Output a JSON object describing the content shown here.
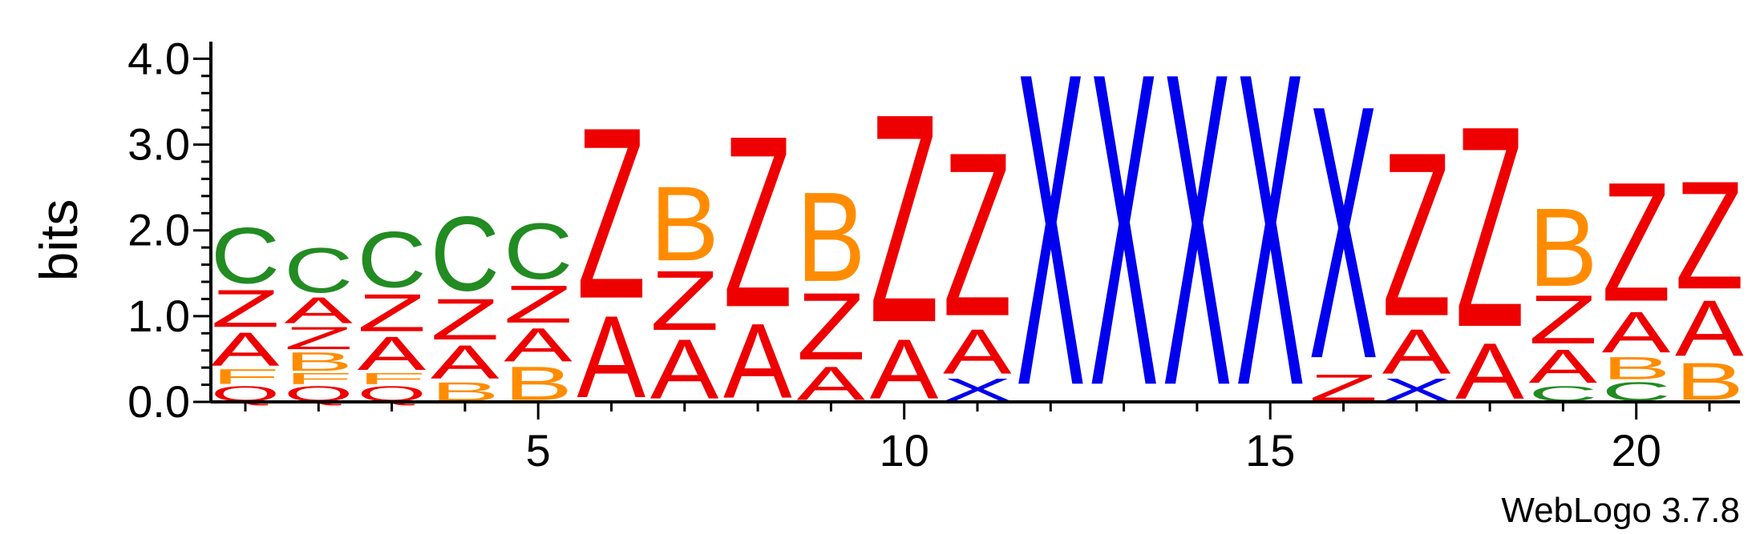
{
  "chart_data": {
    "type": "sequence-logo",
    "ylabel": "bits",
    "ylim": [
      0,
      4.2
    ],
    "y_ticks": [
      "0.0",
      "1.0",
      "2.0",
      "3.0",
      "4.0"
    ],
    "y_tick_values": [
      0,
      1,
      2,
      3,
      4
    ],
    "x_ticks": [
      "5",
      "10",
      "15",
      "20"
    ],
    "x_tick_values": [
      5,
      10,
      15,
      20
    ],
    "positions": [
      1,
      21
    ],
    "colors": {
      "A": "#ee0000",
      "Z": "#ee0000",
      "Q": "#ee0000",
      "B": "#ff8c00",
      "F": "#ff8c00",
      "C": "#228b22",
      "X": "#0000ee"
    },
    "columns": [
      {
        "pos": 1,
        "stack": [
          {
            "letter": "Q",
            "bits": 0.2
          },
          {
            "letter": "F",
            "bits": 0.2
          },
          {
            "letter": "A",
            "bits": 0.45
          },
          {
            "letter": "Z",
            "bits": 0.5
          },
          {
            "letter": "C",
            "bits": 0.75
          }
        ]
      },
      {
        "pos": 2,
        "stack": [
          {
            "letter": "Q",
            "bits": 0.2
          },
          {
            "letter": "F",
            "bits": 0.15
          },
          {
            "letter": "B",
            "bits": 0.25
          },
          {
            "letter": "Z",
            "bits": 0.3
          },
          {
            "letter": "A",
            "bits": 0.35
          },
          {
            "letter": "C",
            "bits": 0.6
          }
        ]
      },
      {
        "pos": 3,
        "stack": [
          {
            "letter": "Q",
            "bits": 0.2
          },
          {
            "letter": "F",
            "bits": 0.15
          },
          {
            "letter": "A",
            "bits": 0.45
          },
          {
            "letter": "Z",
            "bits": 0.5
          },
          {
            "letter": "C",
            "bits": 0.75
          }
        ]
      },
      {
        "pos": 4,
        "stack": [
          {
            "letter": "B",
            "bits": 0.25
          },
          {
            "letter": "A",
            "bits": 0.45
          },
          {
            "letter": "Z",
            "bits": 0.55
          },
          {
            "letter": "C",
            "bits": 1.0
          }
        ]
      },
      {
        "pos": 5,
        "stack": [
          {
            "letter": "B",
            "bits": 0.45
          },
          {
            "letter": "A",
            "bits": 0.45
          },
          {
            "letter": "Z",
            "bits": 0.5
          },
          {
            "letter": "C",
            "bits": 0.75
          }
        ]
      },
      {
        "pos": 6,
        "stack": [
          {
            "letter": "A",
            "bits": 1.1
          },
          {
            "letter": "Z",
            "bits": 2.3
          }
        ]
      },
      {
        "pos": 7,
        "stack": [
          {
            "letter": "A",
            "bits": 0.8
          },
          {
            "letter": "Z",
            "bits": 0.8
          },
          {
            "letter": "B",
            "bits": 1.0
          }
        ]
      },
      {
        "pos": 8,
        "stack": [
          {
            "letter": "A",
            "bits": 1.0
          },
          {
            "letter": "Z",
            "bits": 2.3
          }
        ]
      },
      {
        "pos": 9,
        "stack": [
          {
            "letter": "A",
            "bits": 0.45
          },
          {
            "letter": "Z",
            "bits": 0.9
          },
          {
            "letter": "B",
            "bits": 1.2
          }
        ]
      },
      {
        "pos": 10,
        "stack": [
          {
            "letter": "A",
            "bits": 0.8
          },
          {
            "letter": "Z",
            "bits": 2.8
          }
        ]
      },
      {
        "pos": 11,
        "stack": [
          {
            "letter": "X",
            "bits": 0.3
          },
          {
            "letter": "A",
            "bits": 0.6
          },
          {
            "letter": "Z",
            "bits": 2.2
          }
        ]
      },
      {
        "pos": 12,
        "stack": [
          {
            "letter": "X",
            "bits": 4.2
          }
        ]
      },
      {
        "pos": 13,
        "stack": [
          {
            "letter": "X",
            "bits": 4.2
          }
        ]
      },
      {
        "pos": 14,
        "stack": [
          {
            "letter": "X",
            "bits": 4.2
          }
        ]
      },
      {
        "pos": 15,
        "stack": [
          {
            "letter": "X",
            "bits": 4.2
          }
        ]
      },
      {
        "pos": 16,
        "stack": [
          {
            "letter": "Z",
            "bits": 0.35
          },
          {
            "letter": "X",
            "bits": 3.4
          }
        ]
      },
      {
        "pos": 17,
        "stack": [
          {
            "letter": "X",
            "bits": 0.3
          },
          {
            "letter": "A",
            "bits": 0.6
          },
          {
            "letter": "Z",
            "bits": 2.2
          }
        ]
      },
      {
        "pos": 18,
        "stack": [
          {
            "letter": "A",
            "bits": 0.75
          },
          {
            "letter": "Z",
            "bits": 2.7
          }
        ]
      },
      {
        "pos": 19,
        "stack": [
          {
            "letter": "C",
            "bits": 0.2
          },
          {
            "letter": "A",
            "bits": 0.45
          },
          {
            "letter": "Z",
            "bits": 0.65
          },
          {
            "letter": "B",
            "bits": 1.05
          }
        ]
      },
      {
        "pos": 20,
        "stack": [
          {
            "letter": "C",
            "bits": 0.25
          },
          {
            "letter": "B",
            "bits": 0.3
          },
          {
            "letter": "A",
            "bits": 0.55
          },
          {
            "letter": "Z",
            "bits": 1.6
          }
        ]
      },
      {
        "pos": 21,
        "stack": [
          {
            "letter": "B",
            "bits": 0.5
          },
          {
            "letter": "A",
            "bits": 0.75
          },
          {
            "letter": "Z",
            "bits": 1.45
          }
        ]
      }
    ]
  },
  "footer": {
    "credit": "WebLogo 3.7.8"
  }
}
